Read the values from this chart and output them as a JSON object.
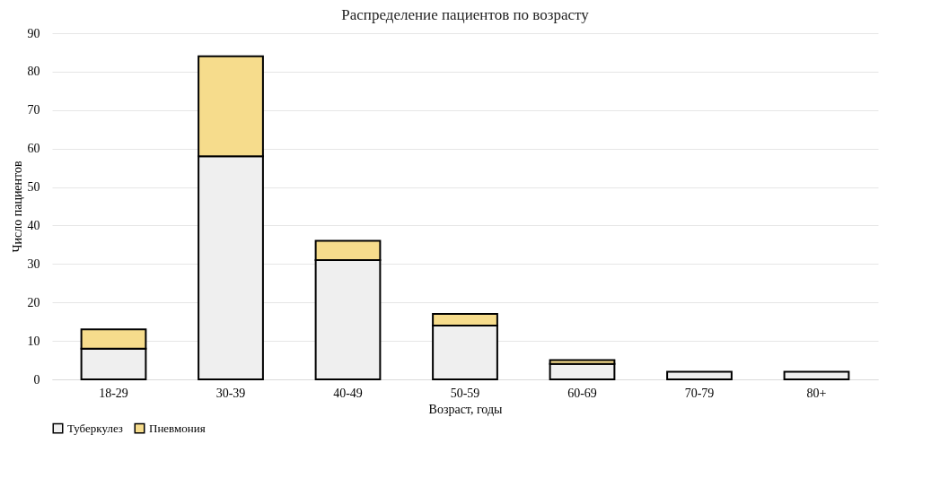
{
  "chart_data": {
    "type": "bar",
    "title": "Распределение пациентов по возрасту",
    "xlabel": "Возраст, годы",
    "ylabel": "Число пациентов",
    "categories": [
      "18-29",
      "30-39",
      "40-49",
      "50-59",
      "60-69",
      "70-79",
      "80+"
    ],
    "stacked": true,
    "series": [
      {
        "name": "Туберкулез",
        "color": "#efefef",
        "values": [
          8,
          58,
          31,
          14,
          4,
          2,
          2
        ]
      },
      {
        "name": "Пневмония",
        "color": "#f6dc8c",
        "values": [
          5,
          26,
          5,
          3,
          1,
          null,
          null
        ]
      }
    ],
    "ylim": [
      0,
      90
    ],
    "yticks": [
      0,
      10,
      20,
      30,
      40,
      50,
      60,
      70,
      80,
      90
    ],
    "grid": "y",
    "legend": "bottom"
  }
}
